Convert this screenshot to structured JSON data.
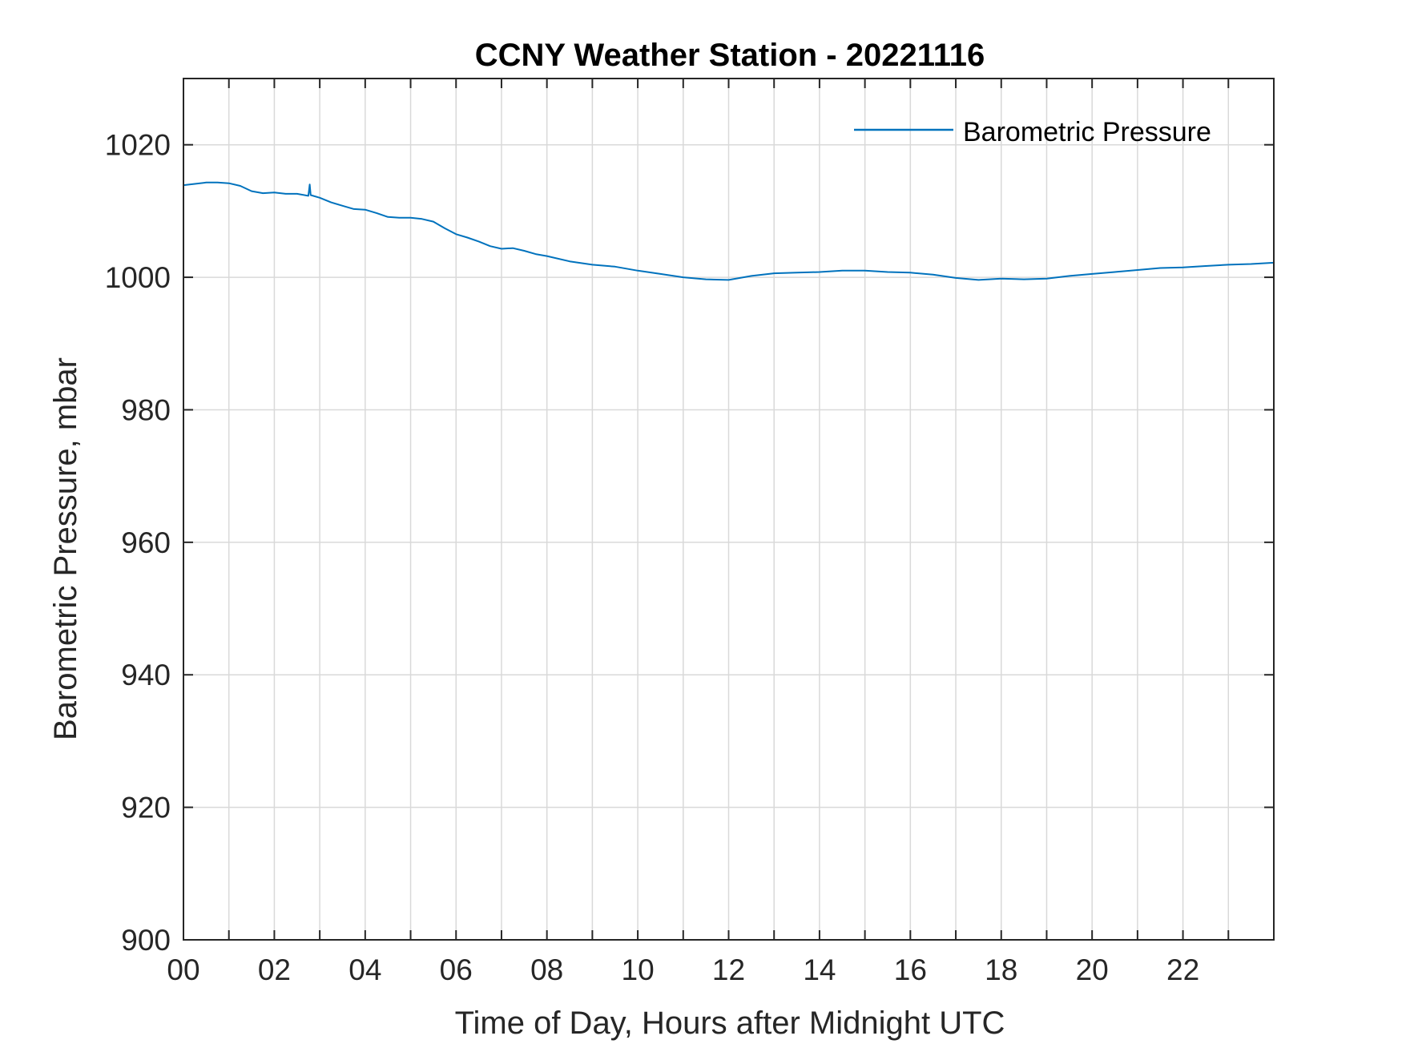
{
  "chart_data": {
    "type": "line",
    "title": "CCNY Weather Station - 20221116",
    "xlabel": "Time of Day, Hours after Midnight UTC",
    "ylabel": "Barometric Pressure, mbar",
    "xlim": [
      0,
      24
    ],
    "ylim": [
      900,
      1030
    ],
    "x_ticks": [
      0,
      2,
      4,
      6,
      8,
      10,
      12,
      14,
      16,
      18,
      20,
      22
    ],
    "x_tick_labels": [
      "00",
      "02",
      "04",
      "06",
      "08",
      "10",
      "12",
      "14",
      "16",
      "18",
      "20",
      "22"
    ],
    "x_minor_gridlines_every": 1,
    "y_ticks": [
      900,
      920,
      940,
      960,
      980,
      1000,
      1020
    ],
    "y_tick_labels": [
      "900",
      "920",
      "940",
      "960",
      "980",
      "1000",
      "1020"
    ],
    "grid": true,
    "legend_position": "top-right",
    "series": [
      {
        "name": "Barometric Pressure",
        "color": "#0072BD",
        "x": [
          0,
          0.25,
          0.5,
          0.75,
          1.0,
          1.25,
          1.5,
          1.75,
          2.0,
          2.25,
          2.5,
          2.75,
          2.78,
          2.8,
          3.0,
          3.25,
          3.5,
          3.75,
          4.0,
          4.25,
          4.5,
          4.75,
          5.0,
          5.25,
          5.5,
          5.75,
          6.0,
          6.25,
          6.5,
          6.75,
          7.0,
          7.25,
          7.5,
          7.75,
          8.0,
          8.5,
          9.0,
          9.5,
          10.0,
          10.5,
          11.0,
          11.5,
          12.0,
          12.5,
          13.0,
          13.5,
          14.0,
          14.5,
          15.0,
          15.5,
          16.0,
          16.5,
          17.0,
          17.5,
          18.0,
          18.5,
          19.0,
          19.5,
          20.0,
          20.5,
          21.0,
          21.5,
          22.0,
          22.5,
          23.0,
          23.5,
          24.0
        ],
        "y": [
          1013.9,
          1014.1,
          1014.3,
          1014.3,
          1014.2,
          1013.8,
          1013.0,
          1012.7,
          1012.8,
          1012.6,
          1012.6,
          1012.3,
          1014.0,
          1012.4,
          1012.0,
          1011.3,
          1010.8,
          1010.3,
          1010.2,
          1009.7,
          1009.1,
          1009.0,
          1009.0,
          1008.8,
          1008.4,
          1007.4,
          1006.5,
          1006.0,
          1005.4,
          1004.7,
          1004.3,
          1004.4,
          1004.0,
          1003.5,
          1003.2,
          1002.4,
          1001.9,
          1001.6,
          1001.0,
          1000.5,
          1000.0,
          999.7,
          999.6,
          1000.2,
          1000.6,
          1000.7,
          1000.8,
          1001.0,
          1001.0,
          1000.8,
          1000.7,
          1000.4,
          999.9,
          999.6,
          999.8,
          999.7,
          999.8,
          1000.2,
          1000.5,
          1000.8,
          1001.1,
          1001.4,
          1001.5,
          1001.7,
          1001.9,
          1002.0,
          1002.2
        ]
      }
    ]
  }
}
